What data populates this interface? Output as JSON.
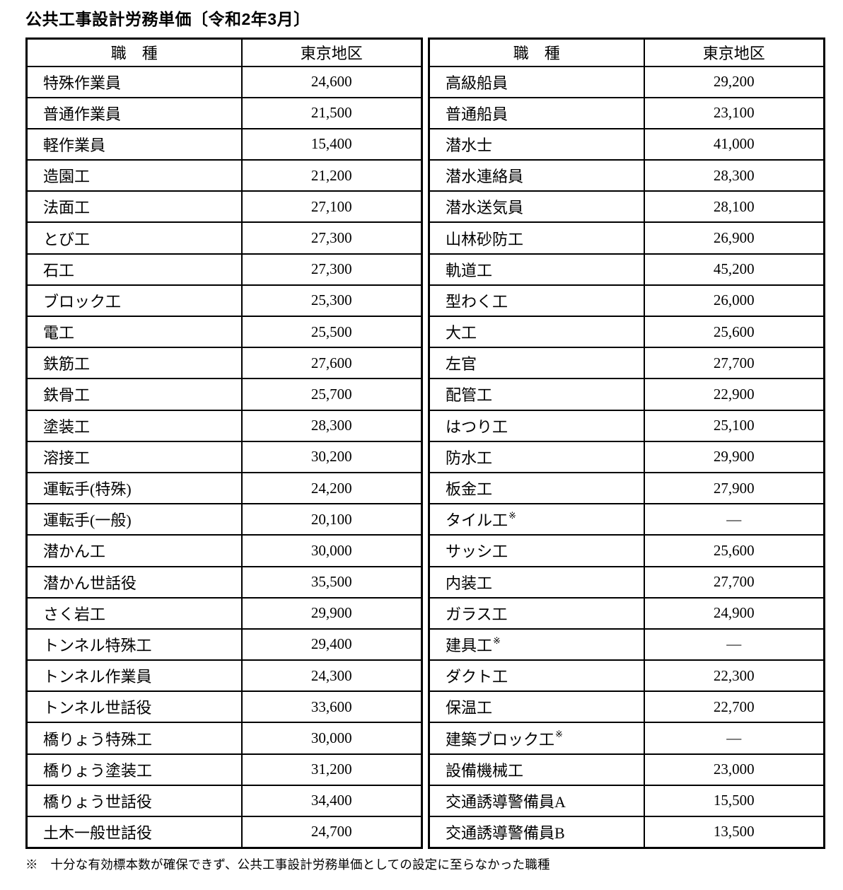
{
  "title": "公共工事設計労務単価〔令和2年3月〕",
  "note_symbol": "※",
  "footnote": "※　十分な有効標本数が確保できず、公共工事設計労務単価としての設定に至らなかった職種",
  "tables": [
    {
      "headers": {
        "job": "職　種",
        "area": "東京地区"
      },
      "rows": [
        {
          "job": "特殊作業員",
          "value": "24,600",
          "note": false
        },
        {
          "job": "普通作業員",
          "value": "21,500",
          "note": false
        },
        {
          "job": "軽作業員",
          "value": "15,400",
          "note": false
        },
        {
          "job": "造園工",
          "value": "21,200",
          "note": false
        },
        {
          "job": "法面工",
          "value": "27,100",
          "note": false
        },
        {
          "job": "とび工",
          "value": "27,300",
          "note": false
        },
        {
          "job": "石工",
          "value": "27,300",
          "note": false
        },
        {
          "job": "ブロック工",
          "value": "25,300",
          "note": false
        },
        {
          "job": "電工",
          "value": "25,500",
          "note": false
        },
        {
          "job": "鉄筋工",
          "value": "27,600",
          "note": false
        },
        {
          "job": "鉄骨工",
          "value": "25,700",
          "note": false
        },
        {
          "job": "塗装工",
          "value": "28,300",
          "note": false
        },
        {
          "job": "溶接工",
          "value": "30,200",
          "note": false
        },
        {
          "job": "運転手(特殊)",
          "value": "24,200",
          "note": false
        },
        {
          "job": "運転手(一般)",
          "value": "20,100",
          "note": false
        },
        {
          "job": "潜かん工",
          "value": "30,000",
          "note": false
        },
        {
          "job": "潜かん世話役",
          "value": "35,500",
          "note": false
        },
        {
          "job": "さく岩工",
          "value": "29,900",
          "note": false
        },
        {
          "job": "トンネル特殊工",
          "value": "29,400",
          "note": false
        },
        {
          "job": "トンネル作業員",
          "value": "24,300",
          "note": false
        },
        {
          "job": "トンネル世話役",
          "value": "33,600",
          "note": false
        },
        {
          "job": "橋りょう特殊工",
          "value": "30,000",
          "note": false
        },
        {
          "job": "橋りょう塗装工",
          "value": "31,200",
          "note": false
        },
        {
          "job": "橋りょう世話役",
          "value": "34,400",
          "note": false
        },
        {
          "job": "土木一般世話役",
          "value": "24,700",
          "note": false
        }
      ]
    },
    {
      "headers": {
        "job": "職　種",
        "area": "東京地区"
      },
      "rows": [
        {
          "job": "高級船員",
          "value": "29,200",
          "note": false
        },
        {
          "job": "普通船員",
          "value": "23,100",
          "note": false
        },
        {
          "job": "潜水士",
          "value": "41,000",
          "note": false
        },
        {
          "job": "潜水連絡員",
          "value": "28,300",
          "note": false
        },
        {
          "job": "潜水送気員",
          "value": "28,100",
          "note": false
        },
        {
          "job": "山林砂防工",
          "value": "26,900",
          "note": false
        },
        {
          "job": "軌道工",
          "value": "45,200",
          "note": false
        },
        {
          "job": "型わく工",
          "value": "26,000",
          "note": false
        },
        {
          "job": "大工",
          "value": "25,600",
          "note": false
        },
        {
          "job": "左官",
          "value": "27,700",
          "note": false
        },
        {
          "job": "配管工",
          "value": "22,900",
          "note": false
        },
        {
          "job": "はつり工",
          "value": "25,100",
          "note": false
        },
        {
          "job": "防水工",
          "value": "29,900",
          "note": false
        },
        {
          "job": "板金工",
          "value": "27,900",
          "note": false
        },
        {
          "job": "タイル工",
          "value": "―",
          "note": true
        },
        {
          "job": "サッシ工",
          "value": "25,600",
          "note": false
        },
        {
          "job": "内装工",
          "value": "27,700",
          "note": false
        },
        {
          "job": "ガラス工",
          "value": "24,900",
          "note": false
        },
        {
          "job": "建具工",
          "value": "―",
          "note": true
        },
        {
          "job": "ダクト工",
          "value": "22,300",
          "note": false
        },
        {
          "job": "保温工",
          "value": "22,700",
          "note": false
        },
        {
          "job": "建築ブロック工",
          "value": "―",
          "note": true
        },
        {
          "job": "設備機械工",
          "value": "23,000",
          "note": false
        },
        {
          "job": "交通誘導警備員A",
          "value": "15,500",
          "note": false
        },
        {
          "job": "交通誘導警備員B",
          "value": "13,500",
          "note": false
        }
      ]
    }
  ]
}
